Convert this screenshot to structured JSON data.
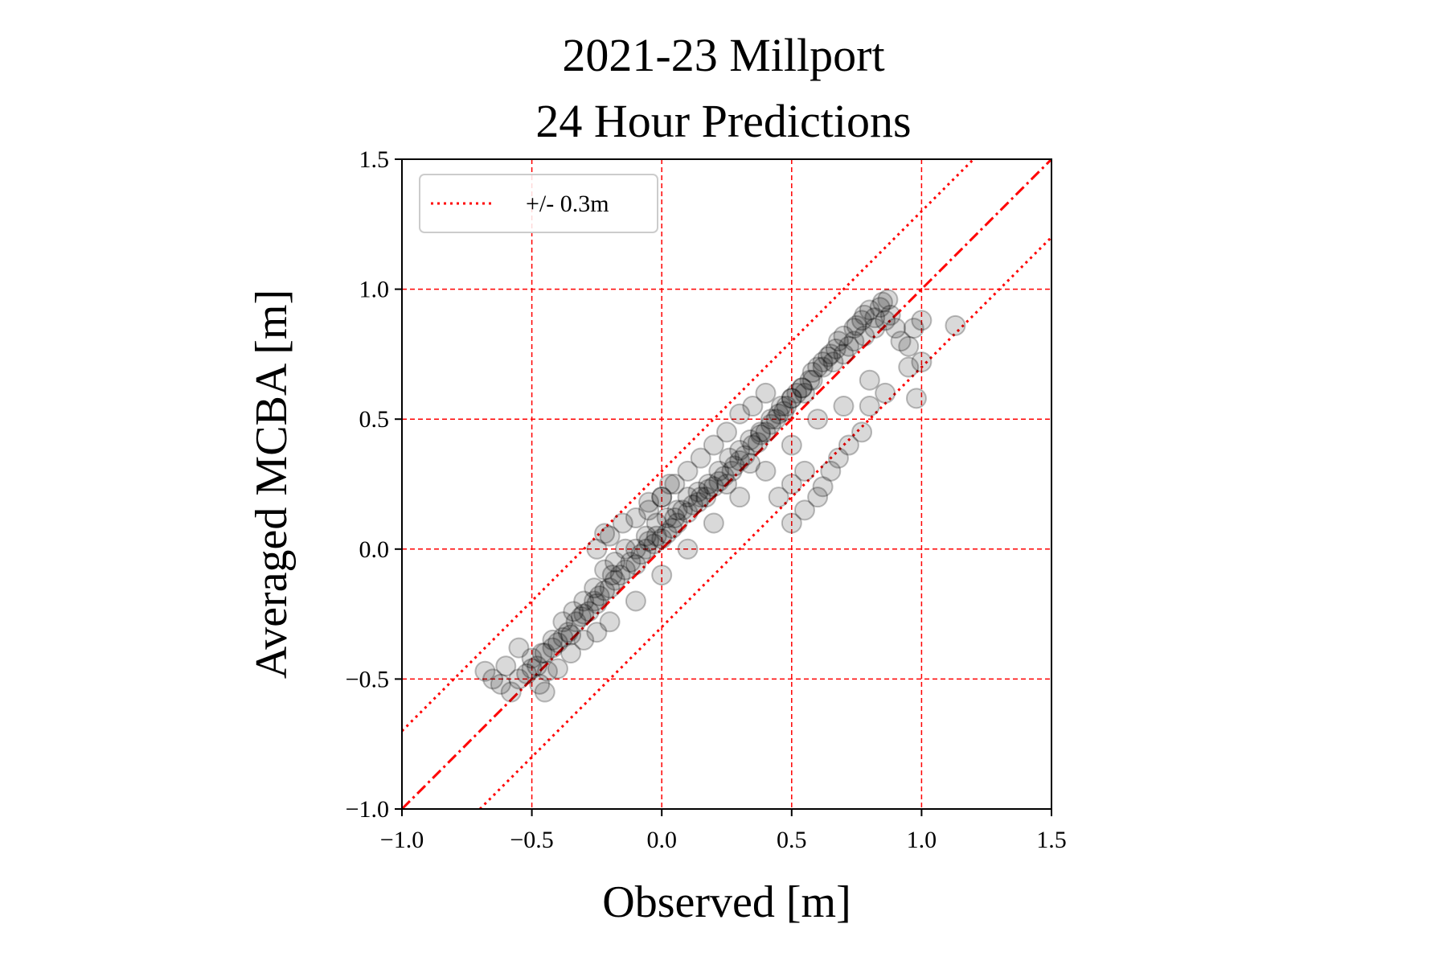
{
  "chart_data": {
    "type": "scatter",
    "title": [
      "2021-23 Millport",
      "24 Hour Predictions"
    ],
    "xlabel": "Observed [m]",
    "ylabel": "Averaged MCBA [m]",
    "xlim": [
      -1.0,
      1.5
    ],
    "ylim": [
      -1.0,
      1.5
    ],
    "xticks": [
      -1.0,
      -0.5,
      0.0,
      0.5,
      1.0,
      1.5
    ],
    "yticks": [
      -1.0,
      -0.5,
      0.0,
      0.5,
      1.0,
      1.5
    ],
    "xtick_labels": [
      "−1.0",
      "−0.5",
      "0.0",
      "0.5",
      "1.0",
      "1.5"
    ],
    "ytick_labels": [
      "−1.0",
      "−0.5",
      "0.0",
      "0.5",
      "1.0",
      "1.5"
    ],
    "grid": true,
    "grid_color": "#ff0000",
    "marker_color": "#000000",
    "marker_alpha": 0.15,
    "reference_lines": [
      {
        "name": "1:1 line",
        "slope": 1,
        "offset": 0.0,
        "style": "dashdot",
        "color": "#ff0000"
      },
      {
        "name": "+/- 0.3m",
        "slope": 1,
        "offset": 0.3,
        "style": "dotted",
        "color": "#ff0000"
      },
      {
        "name": "+/- 0.3m",
        "slope": 1,
        "offset": -0.3,
        "style": "dotted",
        "color": "#ff0000"
      }
    ],
    "legend": {
      "position": "upper-left",
      "entries": [
        {
          "label": "+/- 0.3m",
          "style": "dotted",
          "color": "#ff0000"
        }
      ]
    },
    "series": [
      {
        "x": [
          -0.68,
          -0.62,
          -0.58,
          -0.55,
          -0.52,
          -0.5,
          -0.48,
          -0.47,
          -0.45,
          -0.44,
          -0.42,
          -0.4,
          -0.38,
          -0.36,
          -0.35,
          -0.33,
          -0.31,
          -0.3,
          -0.28,
          -0.26,
          -0.25,
          -0.24,
          -0.22,
          -0.2,
          -0.19,
          -0.18,
          -0.16,
          -0.14,
          -0.12,
          -0.1,
          -0.08,
          -0.06,
          -0.05,
          -0.03,
          -0.02,
          0.0,
          0.02,
          0.04,
          0.05,
          0.06,
          0.08,
          0.1,
          0.12,
          0.14,
          0.15,
          0.17,
          0.18,
          0.2,
          0.22,
          0.24,
          0.25,
          0.27,
          0.28,
          0.3,
          0.32,
          0.34,
          0.35,
          0.37,
          0.38,
          0.4,
          0.42,
          0.44,
          0.45,
          0.47,
          0.48,
          0.5,
          0.52,
          0.54,
          0.55,
          0.57,
          0.58,
          0.6,
          0.62,
          0.64,
          0.65,
          0.67,
          0.68,
          0.7,
          0.72,
          0.74,
          0.75,
          0.77,
          0.78,
          0.8,
          0.82,
          0.84,
          0.85,
          0.87,
          0.88,
          0.9,
          0.92,
          0.95,
          0.97,
          1.0,
          1.13,
          0.5,
          0.55,
          0.6,
          0.62,
          0.65,
          0.68,
          0.72,
          0.77,
          0.8,
          0.86,
          0.95,
          0.98,
          1.0,
          -0.25,
          -0.22,
          -0.2,
          -0.15,
          -0.1,
          -0.05,
          0.0,
          0.05,
          0.1,
          0.15,
          0.2,
          0.25,
          0.3,
          0.35,
          0.4,
          -0.45,
          -0.4,
          -0.35,
          -0.3,
          -0.25,
          -0.2,
          -0.1,
          0.0,
          0.1,
          0.2,
          0.3,
          0.4,
          0.5,
          0.6,
          0.7,
          0.8,
          -0.5,
          -0.46,
          -0.42,
          -0.38,
          -0.34,
          -0.3,
          -0.26,
          -0.22,
          -0.18,
          -0.14,
          -0.1,
          -0.06,
          -0.02,
          0.02,
          0.06,
          0.1,
          0.14,
          0.18,
          0.22,
          0.26,
          0.3,
          0.34,
          0.38,
          0.42,
          0.46,
          0.5,
          0.54,
          0.58,
          0.62,
          0.66,
          0.7,
          0.74,
          0.78,
          0.82,
          0.86,
          -0.55,
          -0.6,
          -0.65,
          -0.05,
          0.0,
          0.03,
          0.45,
          0.5,
          0.55
        ],
        "y": [
          -0.47,
          -0.52,
          -0.55,
          -0.5,
          -0.48,
          -0.46,
          -0.45,
          -0.52,
          -0.4,
          -0.47,
          -0.38,
          -0.36,
          -0.34,
          -0.32,
          -0.33,
          -0.28,
          -0.26,
          -0.25,
          -0.24,
          -0.2,
          -0.21,
          -0.18,
          -0.16,
          -0.15,
          -0.1,
          -0.12,
          -0.1,
          -0.08,
          -0.05,
          -0.06,
          -0.02,
          0.0,
          0.03,
          0.02,
          0.05,
          0.04,
          0.06,
          0.08,
          0.12,
          0.1,
          0.15,
          0.14,
          0.17,
          0.18,
          0.2,
          0.2,
          0.23,
          0.24,
          0.26,
          0.28,
          0.25,
          0.3,
          0.32,
          0.34,
          0.36,
          0.33,
          0.4,
          0.41,
          0.44,
          0.45,
          0.48,
          0.5,
          0.52,
          0.53,
          0.55,
          0.58,
          0.6,
          0.62,
          0.6,
          0.65,
          0.68,
          0.7,
          0.72,
          0.74,
          0.75,
          0.77,
          0.8,
          0.82,
          0.78,
          0.85,
          0.86,
          0.88,
          0.9,
          0.92,
          0.89,
          0.93,
          0.95,
          0.96,
          0.9,
          0.85,
          0.8,
          0.78,
          0.85,
          0.88,
          0.86,
          0.1,
          0.15,
          0.2,
          0.24,
          0.3,
          0.35,
          0.4,
          0.45,
          0.55,
          0.6,
          0.7,
          0.58,
          0.72,
          0.0,
          0.06,
          0.05,
          0.1,
          0.12,
          0.18,
          0.2,
          0.25,
          0.3,
          0.35,
          0.4,
          0.45,
          0.52,
          0.55,
          0.6,
          -0.55,
          -0.46,
          -0.4,
          -0.35,
          -0.32,
          -0.28,
          -0.2,
          -0.1,
          0.0,
          0.1,
          0.2,
          0.3,
          0.4,
          0.5,
          0.55,
          0.65,
          -0.42,
          -0.4,
          -0.35,
          -0.28,
          -0.24,
          -0.2,
          -0.15,
          -0.08,
          -0.05,
          0.0,
          0.0,
          0.05,
          0.1,
          0.12,
          0.15,
          0.2,
          0.22,
          0.25,
          0.3,
          0.35,
          0.38,
          0.42,
          0.45,
          0.5,
          0.55,
          0.58,
          0.62,
          0.65,
          0.7,
          0.72,
          0.75,
          0.8,
          0.82,
          0.85,
          0.88,
          -0.38,
          -0.45,
          -0.5,
          0.15,
          0.2,
          0.25,
          0.2,
          0.25,
          0.3
        ]
      }
    ]
  }
}
